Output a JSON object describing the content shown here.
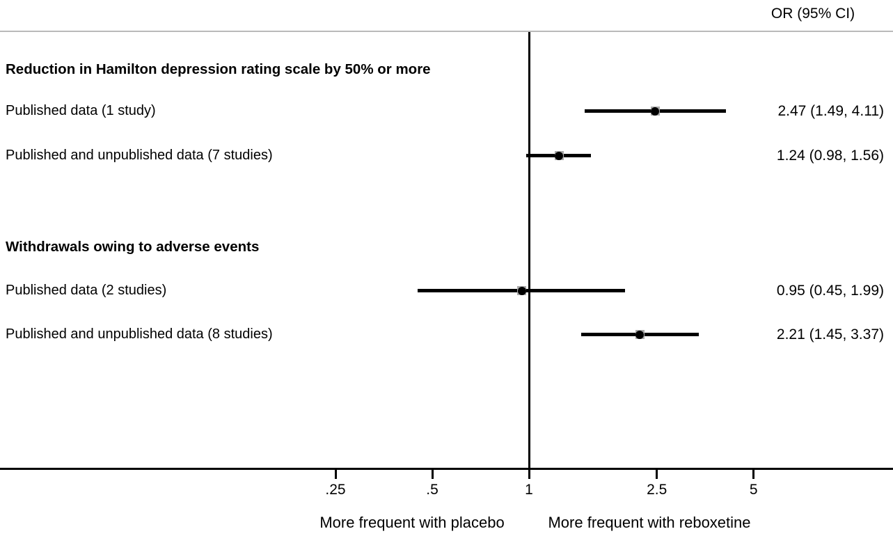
{
  "chart_data": {
    "type": "forest",
    "x_scale": "log",
    "value_header": "OR (95% CI)",
    "x_ticks": [
      0.25,
      0.5,
      1,
      2.5,
      5
    ],
    "tick_labels": [
      ".25",
      ".5",
      "1",
      "2.5",
      "5"
    ],
    "reference_line": 1,
    "axis_caption_left": "More frequent with placebo",
    "axis_caption_right": "More frequent with reboxetine",
    "groups": [
      {
        "title": "Reduction in Hamilton depression rating scale by 50% or more",
        "rows": [
          {
            "label": "Published data (1 study)",
            "or": 2.47,
            "ci_low": 1.49,
            "ci_high": 4.11,
            "display": "2.47 (1.49, 4.11)"
          },
          {
            "label": "Published and unpublished data (7 studies)",
            "or": 1.24,
            "ci_low": 0.98,
            "ci_high": 1.56,
            "display": "1.24 (0.98, 1.56)"
          }
        ]
      },
      {
        "title": "Withdrawals owing to adverse events",
        "rows": [
          {
            "label": "Published data (2 studies)",
            "or": 0.95,
            "ci_low": 0.45,
            "ci_high": 1.99,
            "display": "0.95 (0.45, 1.99)"
          },
          {
            "label": "Published and unpublished data (8 studies)",
            "or": 2.21,
            "ci_low": 1.45,
            "ci_high": 3.37,
            "display": "2.21 (1.45, 3.37)"
          }
        ]
      }
    ],
    "colors": {
      "line": "#000000",
      "marker": "#000000",
      "marker_weight_box": "#a9a9a9",
      "top_rule": "#b9b9b9"
    }
  }
}
